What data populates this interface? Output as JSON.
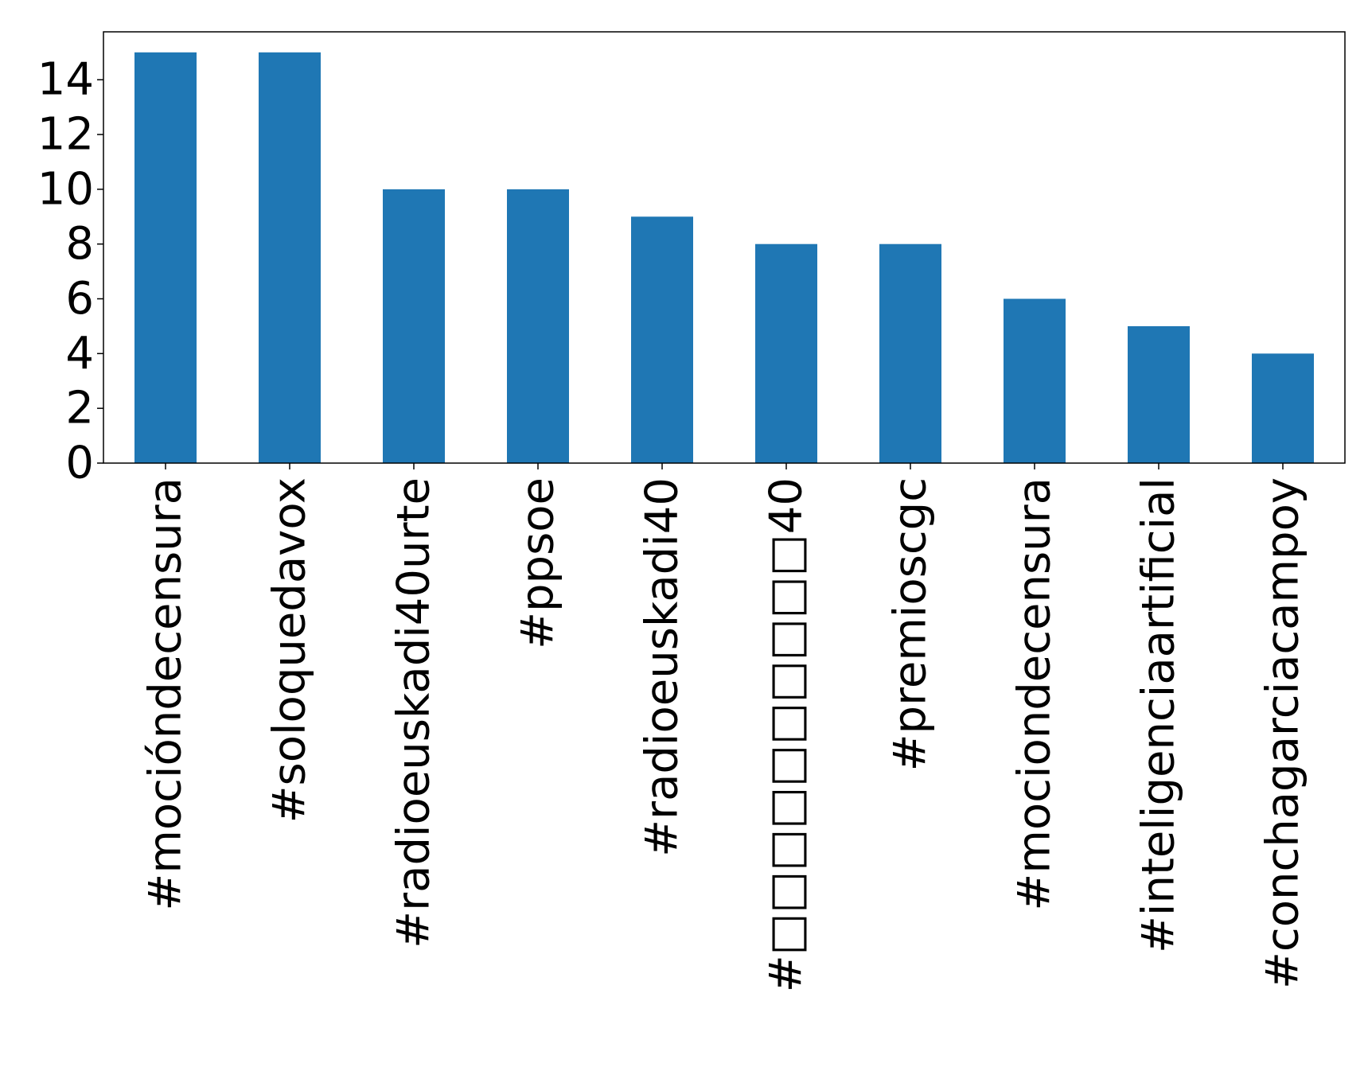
{
  "chart_data": {
    "type": "bar",
    "title": "",
    "xlabel": "",
    "ylabel": "",
    "categories": [
      "#mocióndecensura",
      "#soloquedavox",
      "#radioeuskadi40urte",
      "#ppsoe",
      "#radioeuskadi40",
      "#□□□□□□□□□□40",
      "#premioscgc",
      "#mociondecensura",
      "#inteligenciaartificial",
      "#conchagarciacampoy"
    ],
    "values": [
      15,
      15,
      10,
      10,
      9,
      8,
      8,
      6,
      5,
      4
    ],
    "ylim": [
      0,
      15.75
    ],
    "yticks": [
      "0",
      "2",
      "4",
      "6",
      "8",
      "10",
      "12",
      "14"
    ],
    "bar_color": "#1f77b4",
    "grid": false,
    "legend": "none"
  }
}
